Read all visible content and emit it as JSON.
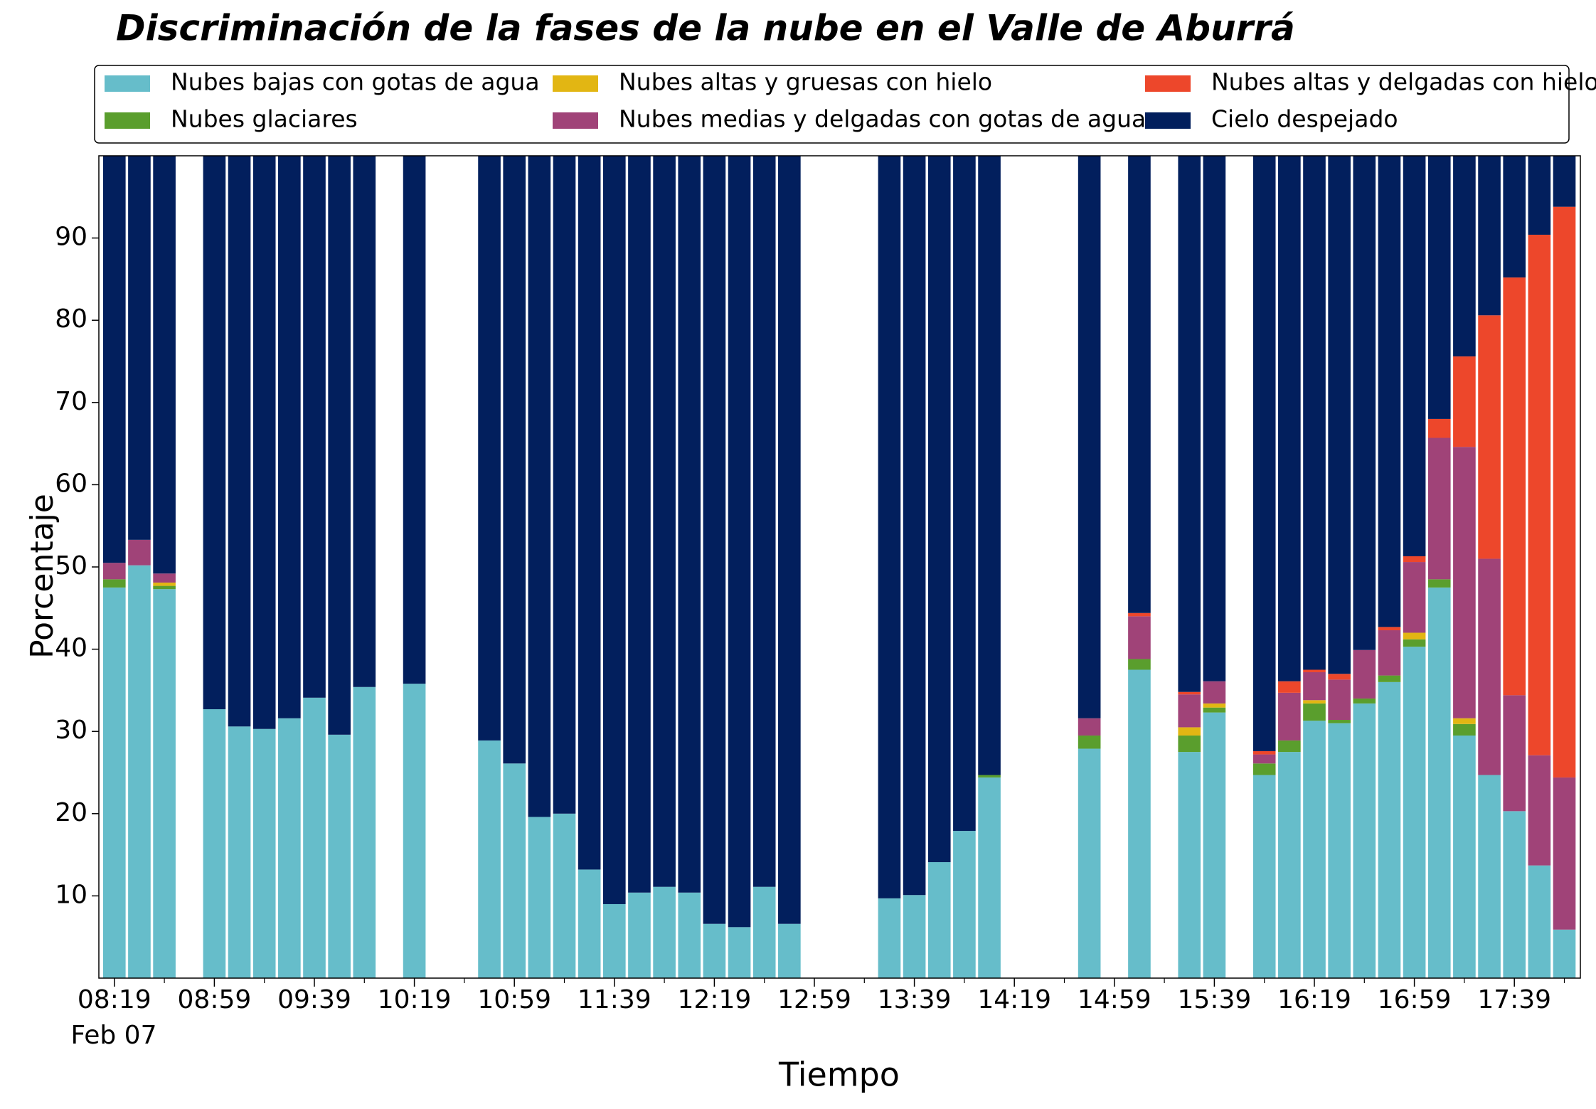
{
  "chart_data": {
    "type": "stacked_bar",
    "title": "Discriminación de la fases de la nube en el Valle de Aburrá",
    "xlabel": "Tiempo",
    "ylabel": "Porcentaje",
    "x_date_label": "Feb 07",
    "categories": [
      "08:19",
      null,
      null,
      null,
      "08:59",
      null,
      null,
      null,
      "09:39",
      null,
      null,
      null,
      "10:19",
      null,
      null,
      null,
      "10:59",
      null,
      null,
      null,
      "11:39",
      null,
      null,
      null,
      "12:19",
      null,
      null,
      null,
      "12:59",
      null,
      null,
      null,
      "13:39",
      null,
      null,
      null,
      "14:19",
      null,
      null,
      null,
      "14:59",
      null,
      null,
      null,
      "15:39",
      null,
      null,
      null,
      "16:19",
      null,
      null,
      null,
      "16:59",
      null,
      null,
      null,
      "17:39",
      null,
      null
    ],
    "ylim": [
      0,
      100
    ],
    "yticks": [
      10,
      20,
      30,
      40,
      50,
      60,
      70,
      80,
      90
    ],
    "legend": "top",
    "series": [
      {
        "name": "Nubes bajas con gotas de agua",
        "color": "#66bdca",
        "values": [
          47.5,
          50.2,
          47.3,
          null,
          32.7,
          30.6,
          30.3,
          31.6,
          34.1,
          29.6,
          35.4,
          null,
          35.8,
          null,
          null,
          28.9,
          26.1,
          19.6,
          20.0,
          13.2,
          9.0,
          10.4,
          11.1,
          10.4,
          6.6,
          6.2,
          11.1,
          6.6,
          null,
          null,
          null,
          9.7,
          10.1,
          14.1,
          17.9,
          24.4,
          null,
          null,
          null,
          27.9,
          null,
          37.5,
          null,
          27.5,
          32.3,
          null,
          24.7,
          27.5,
          31.3,
          31.0,
          33.4,
          36.0,
          40.3,
          47.5,
          29.5,
          24.7,
          20.3,
          13.7,
          5.9
        ]
      },
      {
        "name": "Nubes glaciares",
        "color": "#5a9e2d",
        "values": [
          1.0,
          0,
          0.4,
          null,
          0,
          0,
          0,
          0,
          0,
          0,
          0,
          null,
          0,
          null,
          null,
          0,
          0,
          0,
          0,
          0,
          0,
          0,
          0,
          0,
          0,
          0,
          0,
          0,
          null,
          null,
          null,
          0,
          0,
          0,
          0,
          0.3,
          null,
          null,
          null,
          1.6,
          null,
          1.3,
          null,
          2.0,
          0.6,
          null,
          1.4,
          1.4,
          2.1,
          0.4,
          0.6,
          0.8,
          0.9,
          1.0,
          1.4,
          0,
          0,
          0,
          0
        ]
      },
      {
        "name": "Nubes altas y gruesas con hielo",
        "color": "#e2b613",
        "values": [
          0,
          0,
          0.4,
          null,
          0,
          0,
          0,
          0,
          0,
          0,
          0,
          null,
          0,
          null,
          null,
          0,
          0,
          0,
          0,
          0,
          0,
          0,
          0,
          0,
          0,
          0,
          0,
          0,
          null,
          null,
          null,
          0,
          0,
          0,
          0,
          0,
          null,
          null,
          null,
          0,
          null,
          0,
          null,
          1.0,
          0.5,
          null,
          0,
          0,
          0.4,
          0,
          0,
          0,
          0.8,
          0,
          0.7,
          0,
          0,
          0,
          0
        ]
      },
      {
        "name": "Nubes medias y delgadas con gotas de agua",
        "color": "#a04378",
        "values": [
          2.0,
          3.1,
          1.1,
          null,
          0,
          0,
          0,
          0,
          0,
          0,
          0,
          null,
          0,
          null,
          null,
          0,
          0,
          0,
          0,
          0,
          0,
          0,
          0,
          0,
          0,
          0,
          0,
          0,
          null,
          null,
          null,
          0,
          0,
          0,
          0,
          0,
          null,
          null,
          null,
          2.1,
          null,
          5.2,
          null,
          4.0,
          2.7,
          null,
          1.1,
          5.8,
          3.4,
          4.9,
          5.9,
          5.5,
          8.6,
          17.2,
          33.0,
          26.3,
          14.1,
          13.4,
          18.5
        ]
      },
      {
        "name": "Nubes altas y delgadas con hielo",
        "color": "#ed472b",
        "values": [
          0,
          0,
          0,
          null,
          0,
          0,
          0,
          0,
          0,
          0,
          0,
          null,
          0,
          null,
          null,
          0,
          0,
          0,
          0,
          0,
          0,
          0,
          0,
          0,
          0,
          0,
          0,
          0,
          null,
          null,
          null,
          0,
          0,
          0,
          0,
          0,
          null,
          null,
          null,
          0,
          null,
          0.4,
          null,
          0.3,
          0,
          null,
          0.4,
          1.4,
          0.3,
          0.7,
          0,
          0.4,
          0.7,
          2.3,
          11.0,
          29.6,
          50.8,
          63.3,
          69.4
        ]
      },
      {
        "name": "Cielo despejado",
        "color": "#021f5d",
        "values": [
          49.5,
          46.7,
          50.8,
          null,
          67.3,
          69.4,
          69.7,
          68.4,
          65.9,
          70.4,
          64.6,
          null,
          64.2,
          null,
          null,
          71.1,
          73.9,
          80.4,
          80.0,
          86.8,
          91.0,
          89.6,
          88.9,
          89.6,
          93.4,
          93.8,
          88.9,
          93.4,
          null,
          null,
          null,
          90.3,
          89.9,
          85.9,
          82.1,
          75.3,
          null,
          null,
          null,
          68.4,
          null,
          55.6,
          null,
          65.2,
          63.9,
          null,
          72.4,
          63.9,
          62.5,
          63.0,
          60.1,
          57.3,
          48.7,
          32.0,
          24.4,
          19.4,
          14.8,
          9.6,
          6.2
        ]
      }
    ]
  }
}
